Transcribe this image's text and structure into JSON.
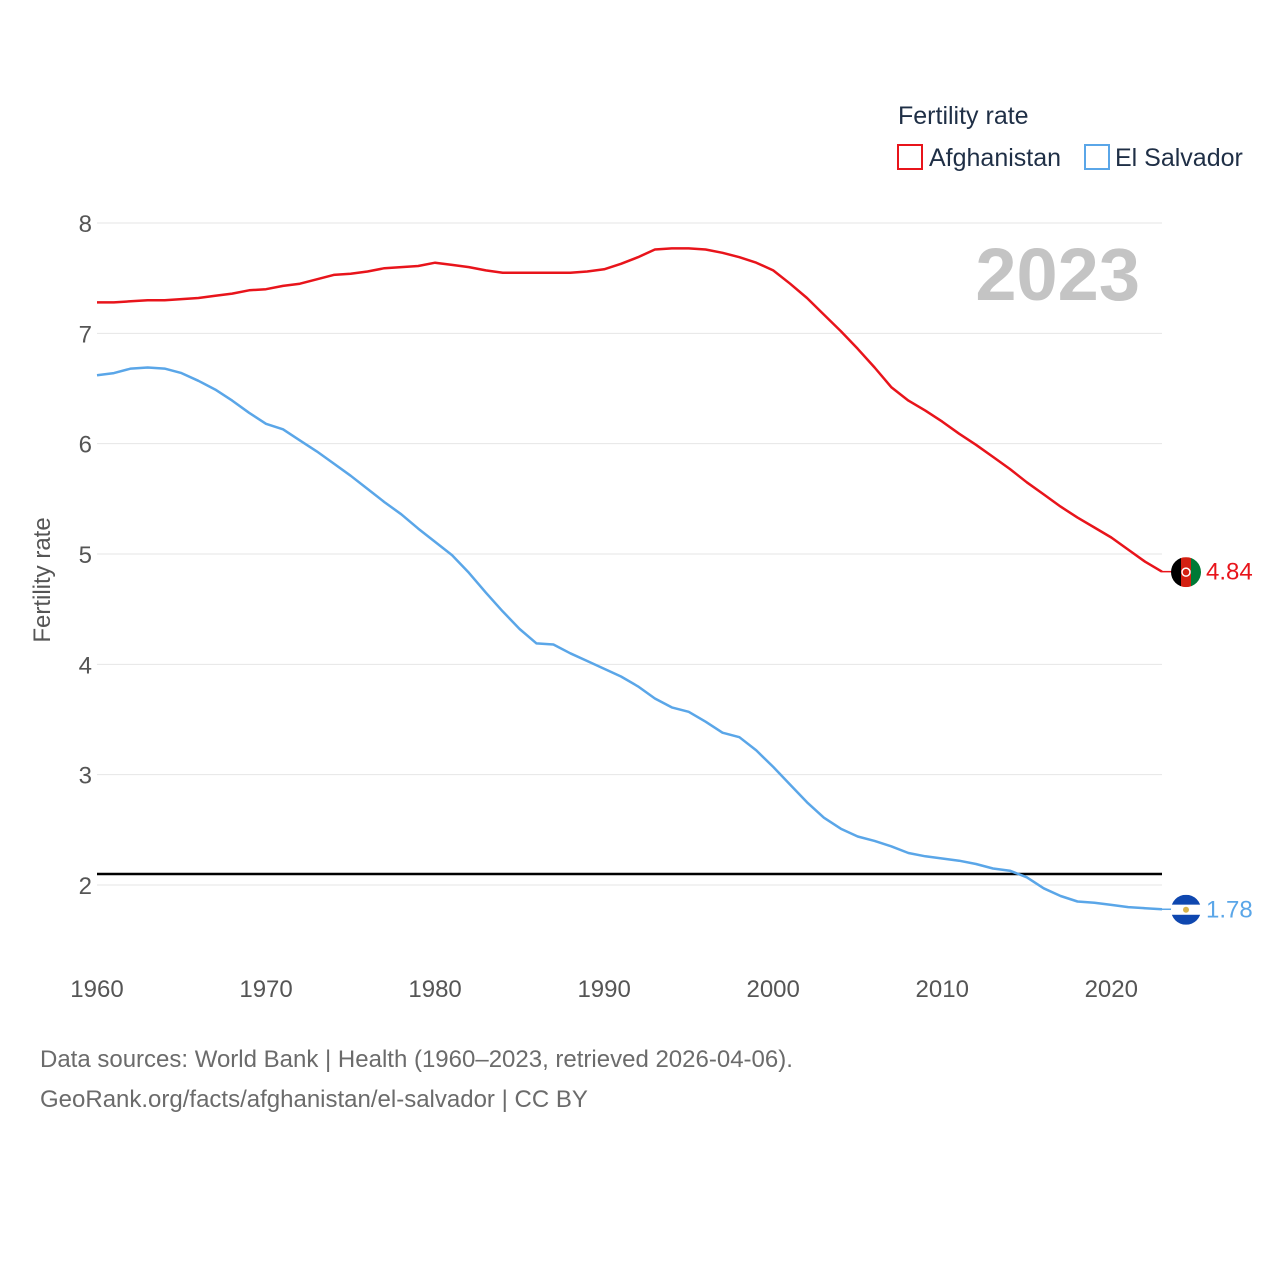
{
  "chart_data": {
    "type": "line",
    "title": "Fertility rate",
    "ylabel": "Fertility rate",
    "xlabel": "",
    "year_label": "2023",
    "xlim": [
      1960,
      2023
    ],
    "ylim": [
      1.4,
      8.2
    ],
    "x_ticks": [
      1960,
      1970,
      1980,
      1990,
      2000,
      2010,
      2020
    ],
    "y_ticks": [
      2,
      3,
      4,
      5,
      6,
      7,
      8
    ],
    "grid": true,
    "legend_position": "top-right",
    "reference_line": 2.1,
    "x": [
      1960,
      1961,
      1962,
      1963,
      1964,
      1965,
      1966,
      1967,
      1968,
      1969,
      1970,
      1971,
      1972,
      1973,
      1974,
      1975,
      1976,
      1977,
      1978,
      1979,
      1980,
      1981,
      1982,
      1983,
      1984,
      1985,
      1986,
      1987,
      1988,
      1989,
      1990,
      1991,
      1992,
      1993,
      1994,
      1995,
      1996,
      1997,
      1998,
      1999,
      2000,
      2001,
      2002,
      2003,
      2004,
      2005,
      2006,
      2007,
      2008,
      2009,
      2010,
      2011,
      2012,
      2013,
      2014,
      2015,
      2016,
      2017,
      2018,
      2019,
      2020,
      2021,
      2022,
      2023
    ],
    "series": [
      {
        "name": "Afghanistan",
        "color": "#e8141b",
        "end_value": "4.84",
        "values": [
          7.28,
          7.28,
          7.29,
          7.3,
          7.3,
          7.31,
          7.32,
          7.34,
          7.36,
          7.39,
          7.4,
          7.43,
          7.45,
          7.49,
          7.53,
          7.54,
          7.56,
          7.59,
          7.6,
          7.61,
          7.64,
          7.62,
          7.6,
          7.57,
          7.55,
          7.55,
          7.55,
          7.55,
          7.55,
          7.56,
          7.58,
          7.63,
          7.69,
          7.76,
          7.77,
          7.77,
          7.76,
          7.73,
          7.69,
          7.64,
          7.57,
          7.45,
          7.32,
          7.17,
          7.02,
          6.86,
          6.69,
          6.51,
          6.39,
          6.3,
          6.2,
          6.09,
          5.99,
          5.88,
          5.77,
          5.65,
          5.54,
          5.43,
          5.33,
          5.24,
          5.15,
          5.04,
          4.93,
          4.84
        ]
      },
      {
        "name": "El Salvador",
        "color": "#5aa6e8",
        "end_value": "1.78",
        "values": [
          6.62,
          6.64,
          6.68,
          6.69,
          6.68,
          6.64,
          6.57,
          6.49,
          6.39,
          6.28,
          6.18,
          6.13,
          6.03,
          5.93,
          5.82,
          5.71,
          5.59,
          5.47,
          5.36,
          5.23,
          5.11,
          4.99,
          4.83,
          4.65,
          4.48,
          4.32,
          4.19,
          4.18,
          4.1,
          4.03,
          3.96,
          3.89,
          3.8,
          3.69,
          3.61,
          3.57,
          3.48,
          3.38,
          3.34,
          3.22,
          3.07,
          2.91,
          2.75,
          2.61,
          2.51,
          2.44,
          2.4,
          2.35,
          2.29,
          2.26,
          2.24,
          2.22,
          2.19,
          2.15,
          2.13,
          2.07,
          1.97,
          1.9,
          1.85,
          1.84,
          1.82,
          1.8,
          1.79,
          1.78
        ]
      }
    ]
  },
  "footer": {
    "line1": "Data sources: World Bank | Health (1960–2023, retrieved 2026-04-06).",
    "line2": "GeoRank.org/facts/afghanistan/el-salvador | CC BY"
  }
}
